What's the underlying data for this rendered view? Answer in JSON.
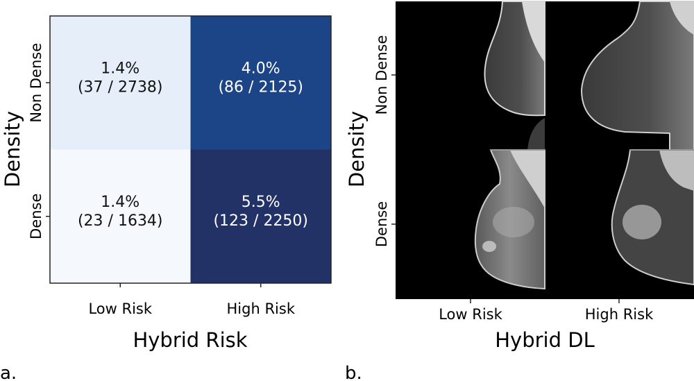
{
  "chart_data": [
    {
      "type": "heatmap",
      "panel_label": "a.",
      "xlabel": "Hybrid Risk",
      "ylabel": "Density",
      "x_categories": [
        "Low Risk",
        "High Risk"
      ],
      "y_categories": [
        "Non Dense",
        "Dense"
      ],
      "cells": [
        {
          "row": 0,
          "col": 0,
          "rate": 1.4,
          "label": "1.4%",
          "count": "(37 / 2738)",
          "color": "#e6eff9",
          "text_color": "#111111"
        },
        {
          "row": 0,
          "col": 1,
          "rate": 4.0,
          "label": "4.0%",
          "count": "(86 / 2125)",
          "color": "#1c4587",
          "text_color": "#ffffff"
        },
        {
          "row": 1,
          "col": 0,
          "rate": 1.4,
          "label": "1.4%",
          "count": "(23 / 1634)",
          "color": "#f5f9fe",
          "text_color": "#111111"
        },
        {
          "row": 1,
          "col": 1,
          "rate": 5.5,
          "label": "5.5%",
          "count": "(123 / 2250)",
          "color": "#223267",
          "text_color": "#ffffff"
        }
      ]
    },
    {
      "type": "image-grid",
      "panel_label": "b.",
      "xlabel": "Hybrid DL",
      "ylabel": "Density",
      "x_categories": [
        "Low Risk",
        "High Risk"
      ],
      "y_categories": [
        "Non Dense",
        "Dense"
      ]
    }
  ]
}
